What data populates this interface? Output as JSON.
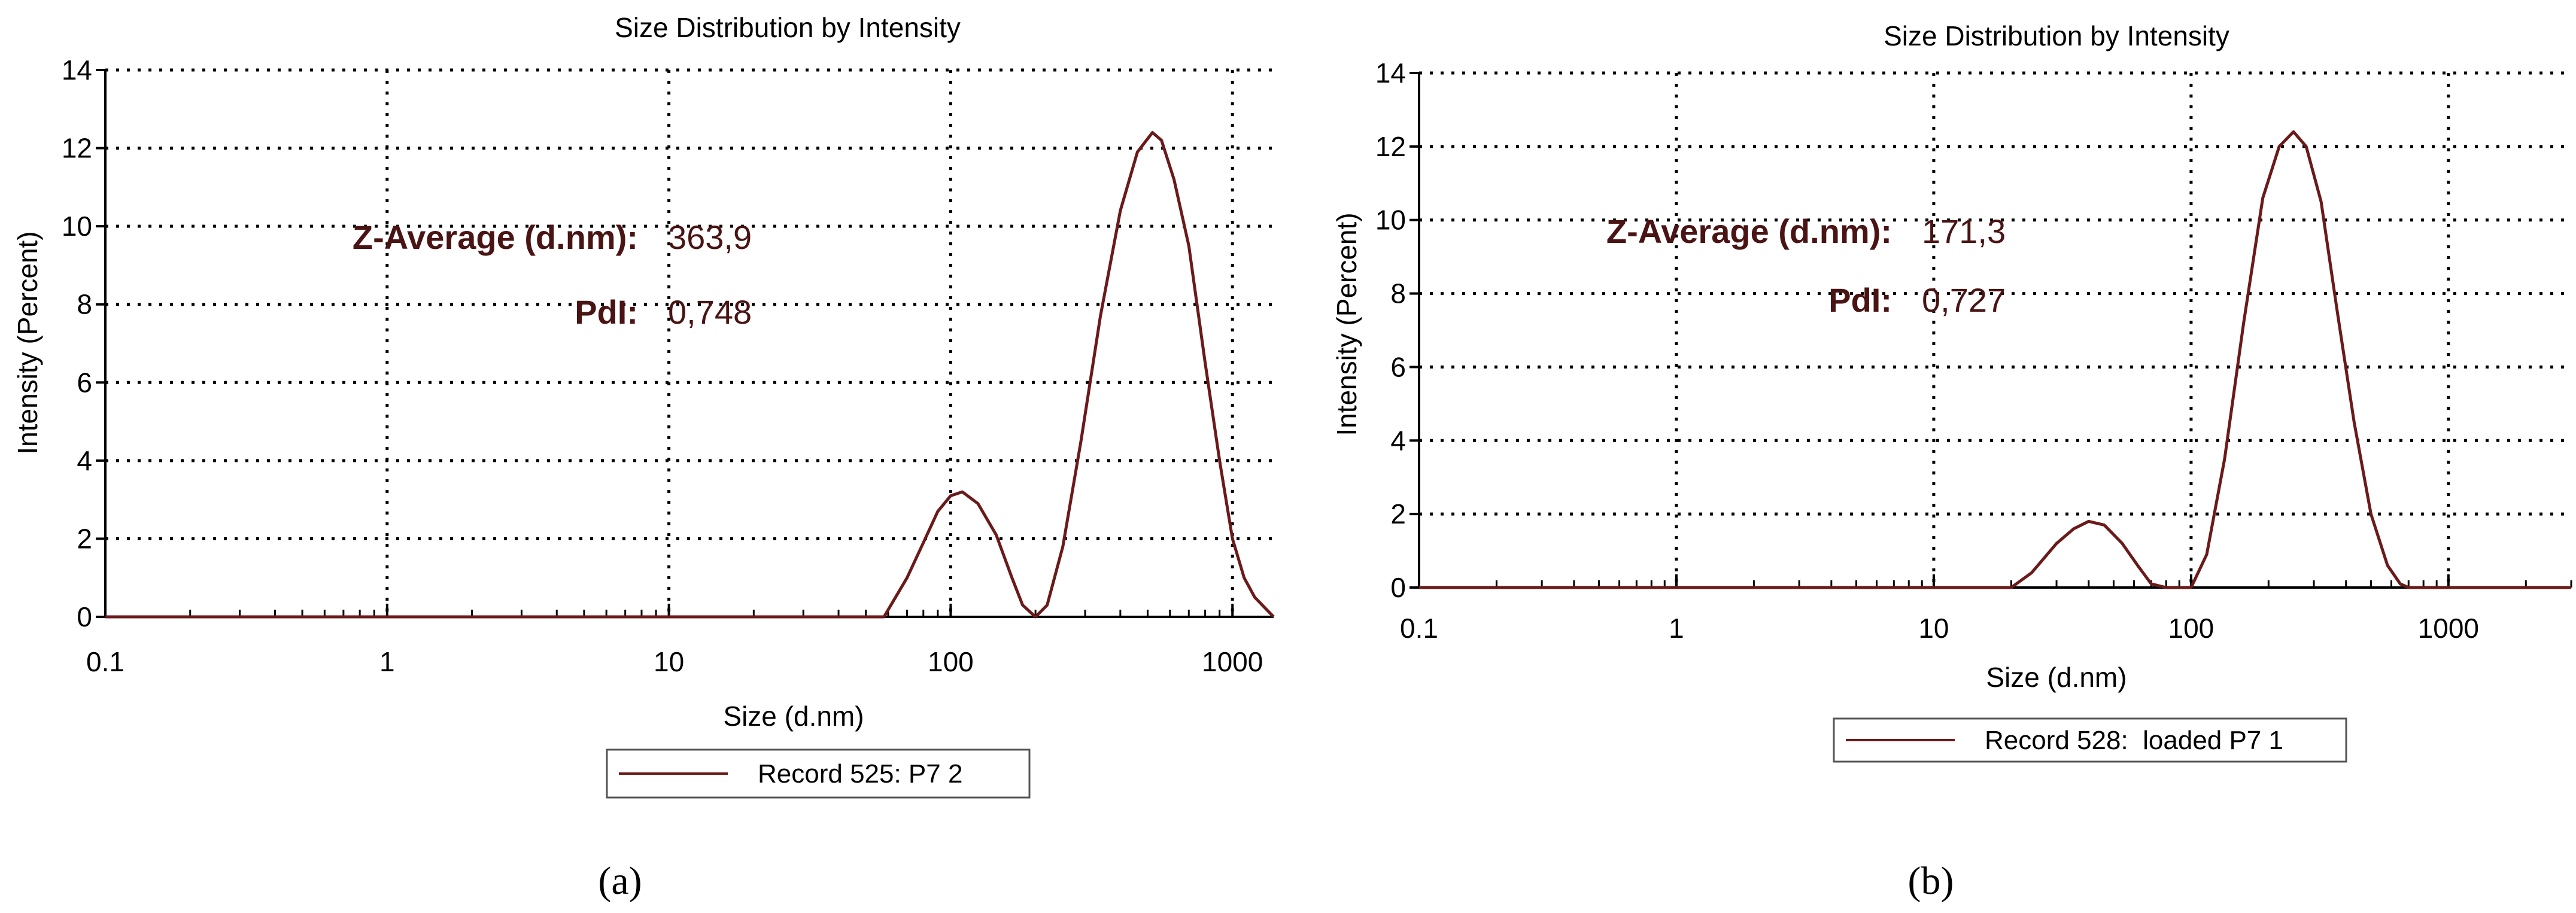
{
  "colors": {
    "series": "#6b1a1a",
    "annotation": "#4a1414",
    "axis": "#000000",
    "grid": "#000000"
  },
  "chart_data": [
    {
      "id": "a",
      "type": "line",
      "title": "Size Distribution by Intensity",
      "xlabel": "Size (d.nm)",
      "ylabel": "Intensity (Percent)",
      "xscale": "log",
      "xlim": [
        0.1,
        1400
      ],
      "ylim": [
        0,
        14
      ],
      "xticks": [
        0.1,
        1,
        10,
        100,
        1000
      ],
      "xtick_labels": [
        "0.1",
        "1",
        "10",
        "100",
        "1000"
      ],
      "yticks": [
        0,
        2,
        4,
        6,
        8,
        10,
        12,
        14
      ],
      "ytick_labels": [
        "0",
        "2",
        "4",
        "6",
        "8",
        "10",
        "12",
        "14"
      ],
      "grid": true,
      "annotations": [
        {
          "label": "Z-Average (d.nm):",
          "value": "363,9"
        },
        {
          "label": "PdI:",
          "value": "0,748"
        }
      ],
      "legend": {
        "placement": "bottom-center",
        "entries": [
          "Record 525: P7 2"
        ]
      },
      "caption": "(a)",
      "series": [
        {
          "name": "Record 525: P7 2",
          "x": [
            0.1,
            50,
            58,
            70,
            80,
            90,
            100,
            110,
            125,
            145,
            165,
            180,
            200,
            220,
            250,
            290,
            340,
            400,
            460,
            520,
            560,
            620,
            700,
            800,
            900,
            1000,
            1100,
            1200,
            1400
          ],
          "y": [
            0,
            0,
            0,
            1.0,
            1.9,
            2.7,
            3.1,
            3.2,
            2.9,
            2.1,
            1.0,
            0.3,
            0,
            0.3,
            1.8,
            4.5,
            7.7,
            10.4,
            11.9,
            12.4,
            12.2,
            11.2,
            9.5,
            6.5,
            4.0,
            2.0,
            1.0,
            0.5,
            0
          ]
        }
      ]
    },
    {
      "id": "b",
      "type": "line",
      "title": "Size Distribution by Intensity",
      "xlabel": "Size (d.nm)",
      "ylabel": "Intensity (Percent)",
      "xscale": "log",
      "xlim": [
        0.1,
        3000
      ],
      "ylim": [
        0,
        14
      ],
      "xticks": [
        0.1,
        1,
        10,
        100,
        1000
      ],
      "xtick_labels": [
        "0.1",
        "1",
        "10",
        "100",
        "1000"
      ],
      "yticks": [
        0,
        2,
        4,
        6,
        8,
        10,
        12,
        14
      ],
      "ytick_labels": [
        "0",
        "2",
        "4",
        "6",
        "8",
        "10",
        "12",
        "14"
      ],
      "grid": true,
      "annotations": [
        {
          "label": "Z-Average (d.nm):",
          "value": "171,3"
        },
        {
          "label": "PdI:",
          "value": "0,727"
        }
      ],
      "legend": {
        "placement": "bottom-center",
        "entries": [
          "Record 528:  loaded P7 1"
        ]
      },
      "caption": "(b)",
      "series": [
        {
          "name": "Record 528:  loaded P7 1",
          "x": [
            0.1,
            20,
            24,
            30,
            35,
            40,
            46,
            54,
            62,
            70,
            80,
            90,
            100,
            115,
            135,
            160,
            190,
            220,
            250,
            280,
            320,
            370,
            430,
            500,
            580,
            650,
            700,
            3000
          ],
          "y": [
            0,
            0,
            0.4,
            1.2,
            1.6,
            1.8,
            1.7,
            1.2,
            0.6,
            0.1,
            0,
            0,
            0,
            0.9,
            3.5,
            7.2,
            10.6,
            12.0,
            12.4,
            12.0,
            10.5,
            7.5,
            4.5,
            2.0,
            0.6,
            0.1,
            0,
            0
          ]
        }
      ]
    }
  ]
}
